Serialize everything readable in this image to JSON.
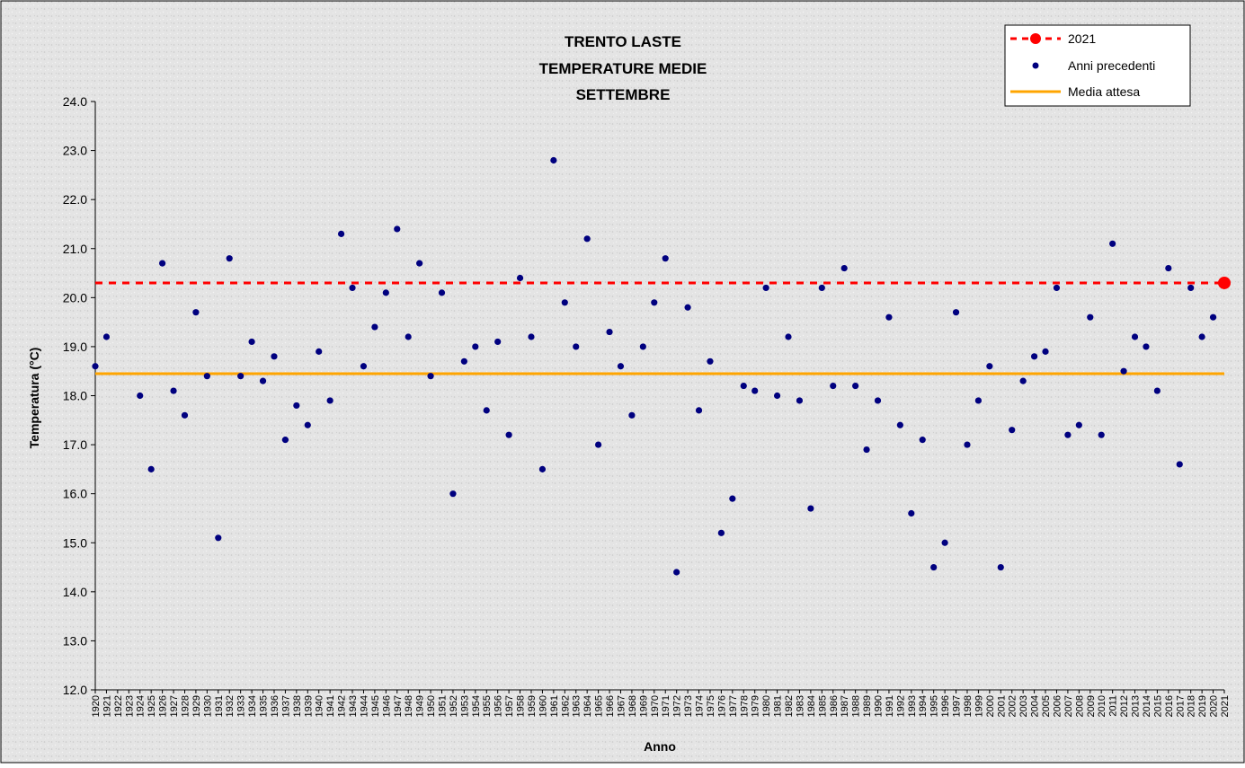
{
  "chart_data": {
    "type": "scatter",
    "title_lines": [
      "TRENTO LASTE",
      "TEMPERATURE MEDIE",
      "SETTEMBRE"
    ],
    "xlabel": "Anno",
    "ylabel": "Temperatura (°C)",
    "ylim": [
      12,
      24
    ],
    "ytick_step": 1,
    "xlim": [
      1920,
      2021
    ],
    "legend_position": "top-right",
    "grid": false,
    "series": [
      {
        "name": "2021",
        "kind": "highlight-point-with-dashed-line",
        "color": "#ff0000",
        "points": [
          {
            "x": 2021,
            "y": 20.3
          }
        ]
      },
      {
        "name": "Anni precedenti",
        "kind": "points",
        "color": "#00007f",
        "points": [
          {
            "x": 1920,
            "y": 18.6
          },
          {
            "x": 1921,
            "y": 19.2
          },
          {
            "x": 1924,
            "y": 18.0
          },
          {
            "x": 1925,
            "y": 16.5
          },
          {
            "x": 1926,
            "y": 20.7
          },
          {
            "x": 1927,
            "y": 18.1
          },
          {
            "x": 1928,
            "y": 17.6
          },
          {
            "x": 1929,
            "y": 19.7
          },
          {
            "x": 1930,
            "y": 18.4
          },
          {
            "x": 1931,
            "y": 15.1
          },
          {
            "x": 1932,
            "y": 20.8
          },
          {
            "x": 1933,
            "y": 18.4
          },
          {
            "x": 1934,
            "y": 19.1
          },
          {
            "x": 1935,
            "y": 18.3
          },
          {
            "x": 1936,
            "y": 18.8
          },
          {
            "x": 1937,
            "y": 17.1
          },
          {
            "x": 1938,
            "y": 17.8
          },
          {
            "x": 1939,
            "y": 17.4
          },
          {
            "x": 1940,
            "y": 18.9
          },
          {
            "x": 1941,
            "y": 17.9
          },
          {
            "x": 1942,
            "y": 21.3
          },
          {
            "x": 1943,
            "y": 20.2
          },
          {
            "x": 1944,
            "y": 18.6
          },
          {
            "x": 1945,
            "y": 19.4
          },
          {
            "x": 1946,
            "y": 20.1
          },
          {
            "x": 1947,
            "y": 21.4
          },
          {
            "x": 1948,
            "y": 19.2
          },
          {
            "x": 1949,
            "y": 20.7
          },
          {
            "x": 1950,
            "y": 18.4
          },
          {
            "x": 1951,
            "y": 20.1
          },
          {
            "x": 1952,
            "y": 16.0
          },
          {
            "x": 1953,
            "y": 18.7
          },
          {
            "x": 1954,
            "y": 19.0
          },
          {
            "x": 1955,
            "y": 17.7
          },
          {
            "x": 1956,
            "y": 19.1
          },
          {
            "x": 1957,
            "y": 17.2
          },
          {
            "x": 1958,
            "y": 20.4
          },
          {
            "x": 1959,
            "y": 19.2
          },
          {
            "x": 1960,
            "y": 16.5
          },
          {
            "x": 1961,
            "y": 22.8
          },
          {
            "x": 1962,
            "y": 19.9
          },
          {
            "x": 1963,
            "y": 19.0
          },
          {
            "x": 1964,
            "y": 21.2
          },
          {
            "x": 1965,
            "y": 17.0
          },
          {
            "x": 1966,
            "y": 19.3
          },
          {
            "x": 1967,
            "y": 18.6
          },
          {
            "x": 1968,
            "y": 17.6
          },
          {
            "x": 1969,
            "y": 19.0
          },
          {
            "x": 1970,
            "y": 19.9
          },
          {
            "x": 1971,
            "y": 20.8
          },
          {
            "x": 1972,
            "y": 14.4
          },
          {
            "x": 1973,
            "y": 19.8
          },
          {
            "x": 1974,
            "y": 17.7
          },
          {
            "x": 1975,
            "y": 18.7
          },
          {
            "x": 1976,
            "y": 15.2
          },
          {
            "x": 1977,
            "y": 15.9
          },
          {
            "x": 1978,
            "y": 18.2
          },
          {
            "x": 1979,
            "y": 18.1
          },
          {
            "x": 1980,
            "y": 20.2
          },
          {
            "x": 1981,
            "y": 18.0
          },
          {
            "x": 1982,
            "y": 19.2
          },
          {
            "x": 1983,
            "y": 17.9
          },
          {
            "x": 1984,
            "y": 15.7
          },
          {
            "x": 1985,
            "y": 20.2
          },
          {
            "x": 1986,
            "y": 18.2
          },
          {
            "x": 1987,
            "y": 20.6
          },
          {
            "x": 1988,
            "y": 18.2
          },
          {
            "x": 1989,
            "y": 16.9
          },
          {
            "x": 1990,
            "y": 17.9
          },
          {
            "x": 1991,
            "y": 19.6
          },
          {
            "x": 1992,
            "y": 17.4
          },
          {
            "x": 1993,
            "y": 15.6
          },
          {
            "x": 1994,
            "y": 17.1
          },
          {
            "x": 1995,
            "y": 14.5
          },
          {
            "x": 1996,
            "y": 15.0
          },
          {
            "x": 1997,
            "y": 19.7
          },
          {
            "x": 1998,
            "y": 17.0
          },
          {
            "x": 1999,
            "y": 17.9
          },
          {
            "x": 2000,
            "y": 18.6
          },
          {
            "x": 2001,
            "y": 14.5
          },
          {
            "x": 2002,
            "y": 17.3
          },
          {
            "x": 2003,
            "y": 18.3
          },
          {
            "x": 2004,
            "y": 18.8
          },
          {
            "x": 2005,
            "y": 18.9
          },
          {
            "x": 2006,
            "y": 20.2
          },
          {
            "x": 2007,
            "y": 17.2
          },
          {
            "x": 2008,
            "y": 17.4
          },
          {
            "x": 2009,
            "y": 19.6
          },
          {
            "x": 2010,
            "y": 17.2
          },
          {
            "x": 2011,
            "y": 21.1
          },
          {
            "x": 2012,
            "y": 18.5
          },
          {
            "x": 2013,
            "y": 19.2
          },
          {
            "x": 2014,
            "y": 19.0
          },
          {
            "x": 2015,
            "y": 18.1
          },
          {
            "x": 2016,
            "y": 20.6
          },
          {
            "x": 2017,
            "y": 16.6
          },
          {
            "x": 2018,
            "y": 20.2
          },
          {
            "x": 2019,
            "y": 19.2
          },
          {
            "x": 2020,
            "y": 19.6
          }
        ]
      },
      {
        "name": "Media attesa",
        "kind": "horizontal-line",
        "color": "#ffa500",
        "y": 18.45
      }
    ]
  }
}
